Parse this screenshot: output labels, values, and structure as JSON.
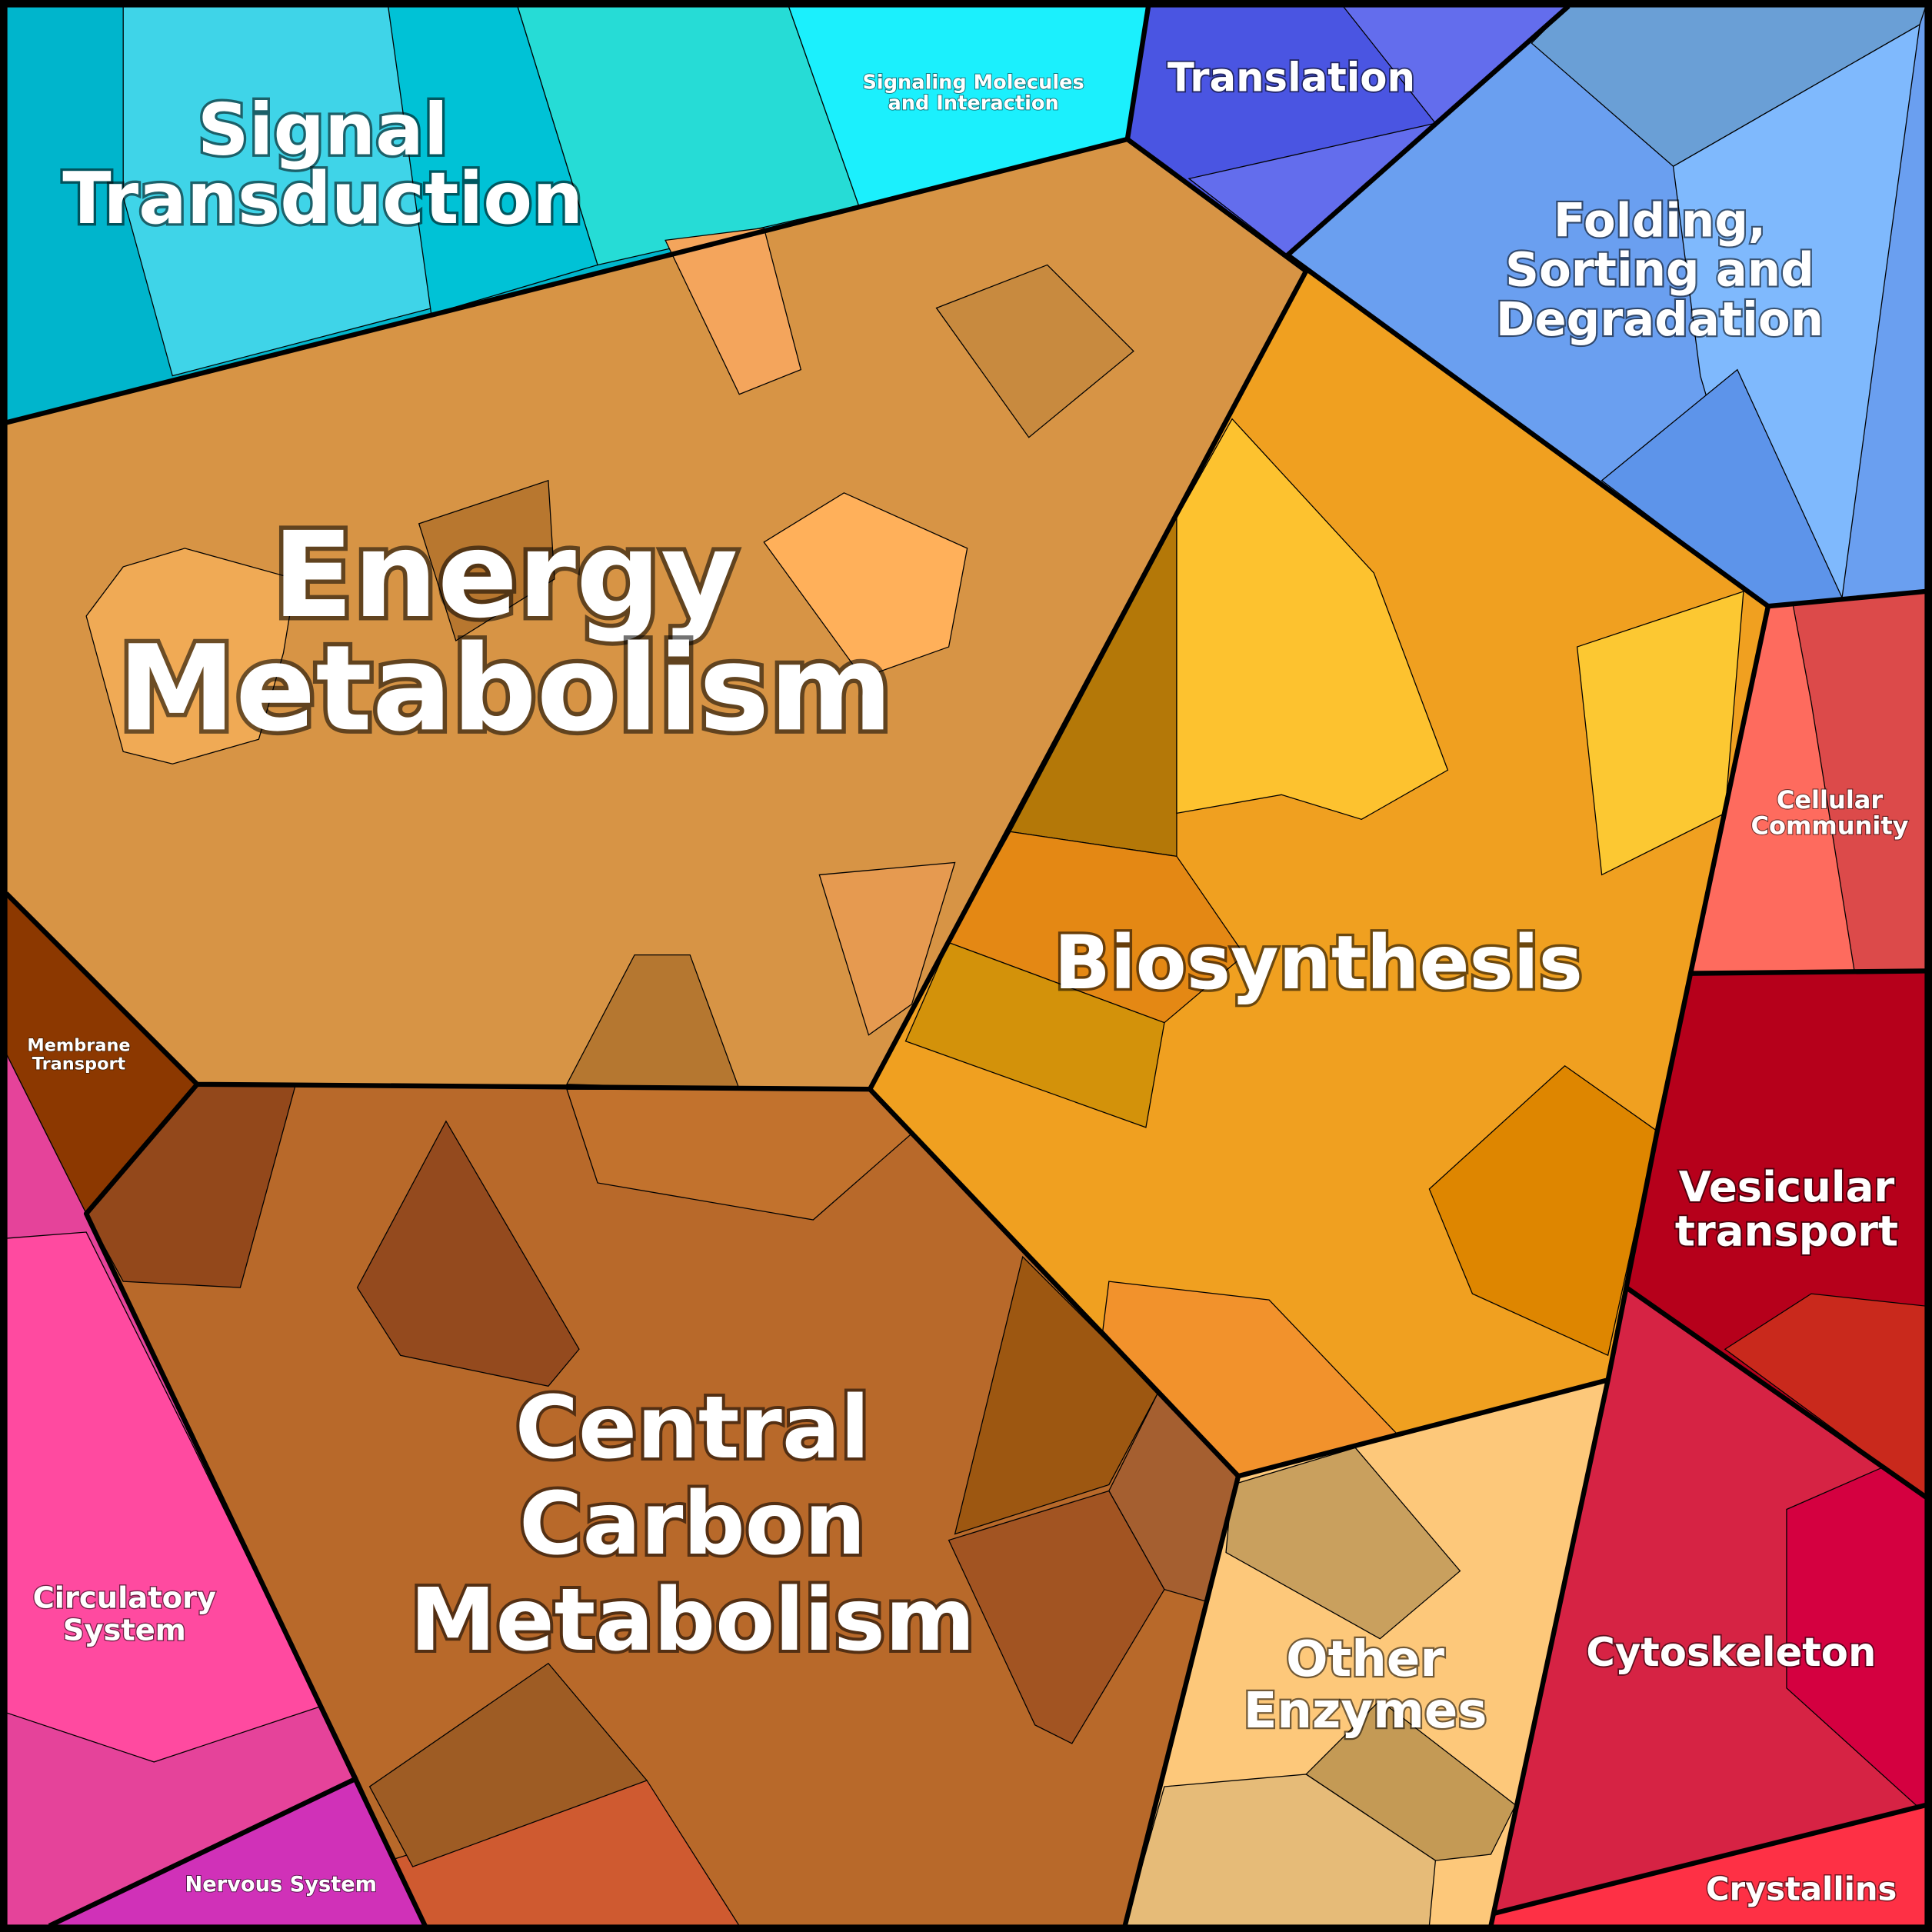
{
  "regions": [
    {
      "lines": [
        "Signal",
        "Transduction"
      ]
    },
    {
      "lines": [
        "Signaling Molecules",
        "and Interaction"
      ]
    },
    {
      "lines": [
        "Translation"
      ]
    },
    {
      "lines": [
        "Folding,",
        "Sorting and",
        "Degradation"
      ]
    },
    {
      "lines": [
        "Energy",
        "Metabolism"
      ]
    },
    {
      "lines": [
        "Membrane",
        "Transport"
      ]
    },
    {
      "lines": [
        "Biosynthesis"
      ]
    },
    {
      "lines": [
        "Cellular",
        "Community"
      ]
    },
    {
      "lines": [
        "Vesicular",
        "transport"
      ]
    },
    {
      "lines": [
        "Central",
        "Carbon",
        "Metabolism"
      ]
    },
    {
      "lines": [
        "Other",
        "Enzymes"
      ]
    },
    {
      "lines": [
        "Cytoskeleton"
      ]
    },
    {
      "lines": [
        "Circulatory",
        "System"
      ]
    },
    {
      "lines": [
        "Nervous System"
      ]
    },
    {
      "lines": [
        "Crystallins"
      ]
    }
  ]
}
